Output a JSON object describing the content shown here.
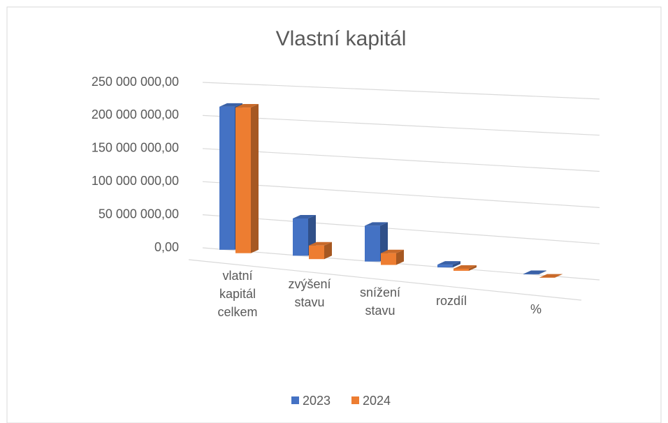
{
  "chart_data": {
    "type": "bar3d",
    "title": "Vlastní kapitál",
    "categories": [
      "vlatní kapitál celkem",
      "zvýšení stavu",
      "snížení stavu",
      "rozdíl",
      "%"
    ],
    "series": [
      {
        "name": "2023",
        "color": "#4472c4",
        "values": [
          215000000,
          55000000,
          52000000,
          4000000,
          500000
        ]
      },
      {
        "name": "2024",
        "color": "#ed7d31",
        "values": [
          218000000,
          20000000,
          17000000,
          3000000,
          300000
        ]
      }
    ],
    "ylim": [
      0,
      250000000
    ],
    "yticks": [
      {
        "value": 0,
        "label": "0,00"
      },
      {
        "value": 50000000,
        "label": "50 000 000,00"
      },
      {
        "value": 100000000,
        "label": "100 000 000,00"
      },
      {
        "value": 150000000,
        "label": "150 000 000,00"
      },
      {
        "value": 200000000,
        "label": "200 000 000,00"
      },
      {
        "value": 250000000,
        "label": "250 000 000,00"
      }
    ],
    "grid": true,
    "legend": "bottom"
  }
}
